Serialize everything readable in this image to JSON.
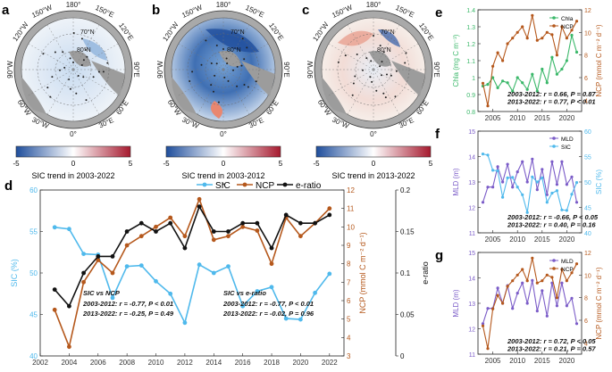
{
  "maps": [
    {
      "letter": "a",
      "caption": "SIC trend in 2003-2022",
      "extra": ""
    },
    {
      "letter": "b",
      "caption": "SIC trend in 2003-2012",
      "extra": "*"
    },
    {
      "letter": "c",
      "caption": "SIC trend in 2013-2022",
      "extra": ""
    }
  ],
  "map_labels": {
    "lon180": "180°",
    "lon150w": "150°W",
    "lon150e": "150°E",
    "lon120w": "120°W",
    "lon120e": "120°E",
    "lon90w": "90°W",
    "lon90e": "90°E",
    "lon60w": "60°W",
    "lon60e": "60°E",
    "lon30w": "30°W",
    "lon30e": "30°E",
    "lon0": "0°",
    "lat70": "70°N",
    "lat80": "80°N"
  },
  "colorbar": {
    "min": "-5",
    "mid": "0",
    "max": "5",
    "colors": [
      "#1f4e9c",
      "#ffffff",
      "#a6192e"
    ]
  },
  "chart_data": [
    {
      "id": "d",
      "type": "line",
      "title": "",
      "x": [
        2003,
        2004,
        2005,
        2006,
        2007,
        2008,
        2009,
        2010,
        2011,
        2012,
        2013,
        2014,
        2015,
        2016,
        2017,
        2018,
        2019,
        2020,
        2021,
        2022
      ],
      "xlim": [
        2002,
        2023
      ],
      "xticks": [
        "2002",
        "2004",
        "2006",
        "2008",
        "2010",
        "2012",
        "2014",
        "2016",
        "2018",
        "2020",
        "2022"
      ],
      "series": [
        {
          "name": "SIC",
          "axis": "left",
          "color": "#4fb9ec",
          "values": [
            55.5,
            55.3,
            52.3,
            52.2,
            47.0,
            50.8,
            50.9,
            49.0,
            47.5,
            44.0,
            51.0,
            50.0,
            50.8,
            46.0,
            47.8,
            48.3,
            44.5,
            44.4,
            47.6,
            49.9
          ]
        },
        {
          "name": "NCP",
          "axis": "right",
          "color": "#b5581c",
          "values": [
            5.5,
            3.5,
            7.0,
            8.2,
            7.5,
            9.0,
            9.5,
            10.0,
            10.5,
            9.5,
            11.5,
            9.3,
            9.5,
            10.0,
            9.8,
            8.0,
            10.5,
            9.5,
            10.2,
            11.0
          ]
        },
        {
          "name": "e-ratio",
          "axis": "right2",
          "color": "#111111",
          "values": [
            0.08,
            0.06,
            0.1,
            0.12,
            0.12,
            0.15,
            0.16,
            0.15,
            0.16,
            0.13,
            0.18,
            0.15,
            0.15,
            0.16,
            0.16,
            0.13,
            0.17,
            0.16,
            0.16,
            0.17
          ]
        }
      ],
      "ylabel_left": "SIC (%)",
      "ylim_left": [
        40,
        60
      ],
      "yticks_left": [
        "40",
        "45",
        "50",
        "55",
        "60"
      ],
      "ylabel_right": "NCP (mmol C m⁻² d⁻¹)",
      "ylim_right": [
        3,
        12
      ],
      "yticks_right": [
        "3",
        "4",
        "5",
        "6",
        "7",
        "8",
        "9",
        "10",
        "11",
        "12"
      ],
      "ylabel_right2": "e-ratio",
      "ylim_right2": [
        0,
        0.2
      ],
      "yticks_right2": [
        "0",
        "0.05",
        "0.1",
        "0.15",
        "0.2"
      ],
      "annotations": [
        {
          "title": "SIC vs NCP",
          "l1": "2003-2012: r = -0.77, P < 0.01",
          "l2": "2013-2022: r = -0.25, P = 0.49"
        },
        {
          "title": "SIC vs e-ratio",
          "l1": "2003-2012: r = -0.77, P < 0.01",
          "l2": "2013-2022: r = -0.02, P = 0.96"
        }
      ]
    },
    {
      "id": "e",
      "type": "line",
      "x": [
        2003,
        2004,
        2005,
        2006,
        2007,
        2008,
        2009,
        2010,
        2011,
        2012,
        2013,
        2014,
        2015,
        2016,
        2017,
        2018,
        2019,
        2020,
        2021,
        2022
      ],
      "xlim": [
        2002,
        2023
      ],
      "xticks": [
        "2005",
        "2010",
        "2015",
        "2020"
      ],
      "series": [
        {
          "name": "Chla",
          "axis": "left",
          "color": "#3bb86a",
          "values": [
            0.95,
            0.96,
            1.0,
            0.94,
            0.98,
            0.97,
            0.92,
            1.0,
            0.97,
            0.93,
            1.02,
            0.92,
            1.05,
            0.97,
            1.12,
            1.02,
            1.05,
            1.1,
            1.25,
            1.15
          ]
        },
        {
          "name": "NCP",
          "axis": "right",
          "color": "#b5581c",
          "values": [
            5.5,
            3.5,
            7.0,
            8.2,
            7.5,
            9.0,
            9.5,
            10.0,
            10.5,
            9.5,
            11.5,
            9.3,
            9.5,
            10.0,
            9.8,
            8.0,
            10.5,
            9.5,
            10.2,
            11.0
          ]
        }
      ],
      "ylabel_left": "Chla (mg C m⁻³)",
      "ylim_left": [
        0.8,
        1.4
      ],
      "yticks_left": [
        "0.8",
        "0.9",
        "1",
        "1.1",
        "1.2",
        "1.3",
        "1.4"
      ],
      "ylabel_right": "NCP (mmol C m⁻² d⁻¹)",
      "ylim_right": [
        3,
        12
      ],
      "yticks_right": [
        "4",
        "6",
        "8",
        "10",
        "12"
      ],
      "annotations": [
        {
          "l1": "2003-2012: r = 0.66, P = 0.87",
          "l2": "2013-2022: r = 0.77, P < 0.01"
        }
      ]
    },
    {
      "id": "f",
      "type": "line",
      "x": [
        2003,
        2004,
        2005,
        2006,
        2007,
        2008,
        2009,
        2010,
        2011,
        2012,
        2013,
        2014,
        2015,
        2016,
        2017,
        2018,
        2019,
        2020,
        2021,
        2022
      ],
      "xlim": [
        2002,
        2023
      ],
      "xticks": [
        "2005",
        "2010",
        "2015",
        "2020"
      ],
      "series": [
        {
          "name": "MLD",
          "axis": "left",
          "color": "#7b5cc8",
          "values": [
            12.2,
            12.8,
            12.8,
            13.6,
            13.0,
            13.7,
            12.8,
            13.4,
            13.8,
            13.0,
            13.9,
            12.7,
            13.5,
            12.5,
            13.8,
            12.9,
            13.8,
            12.9,
            13.2,
            12.2
          ]
        },
        {
          "name": "SIC",
          "axis": "right",
          "color": "#4fb9ec",
          "values": [
            55.5,
            55.3,
            52.3,
            52.2,
            47.0,
            50.8,
            50.9,
            49.0,
            47.5,
            44.0,
            51.0,
            50.0,
            50.8,
            46.0,
            47.8,
            48.3,
            44.5,
            44.4,
            47.6,
            49.9
          ]
        }
      ],
      "ylabel_left": "MLD (m)",
      "ylim_left": [
        11,
        15
      ],
      "yticks_left": [
        "11",
        "12",
        "13",
        "14",
        "15"
      ],
      "ylabel_right": "SIC (%)",
      "ylim_right": [
        40,
        60
      ],
      "yticks_right": [
        "40",
        "45",
        "50",
        "55",
        "60"
      ],
      "annotations": [
        {
          "l1": "2003-2012: r = -0.66, P < 0.05",
          "l2": "2013-2022: r = 0.40, P = 0.16"
        }
      ]
    },
    {
      "id": "g",
      "type": "line",
      "x": [
        2003,
        2004,
        2005,
        2006,
        2007,
        2008,
        2009,
        2010,
        2011,
        2012,
        2013,
        2014,
        2015,
        2016,
        2017,
        2018,
        2019,
        2020,
        2021,
        2022
      ],
      "xlim": [
        2002,
        2023
      ],
      "xticks": [
        "2005",
        "2010",
        "2015",
        "2020"
      ],
      "series": [
        {
          "name": "MLD",
          "axis": "left",
          "color": "#7b5cc8",
          "values": [
            12.2,
            12.8,
            12.8,
            13.6,
            13.0,
            13.7,
            12.8,
            13.4,
            13.8,
            13.0,
            13.9,
            12.7,
            13.5,
            12.5,
            13.8,
            12.9,
            13.8,
            12.9,
            13.2,
            12.2
          ]
        },
        {
          "name": "NCP",
          "axis": "right",
          "color": "#b5581c",
          "values": [
            5.5,
            3.5,
            7.0,
            8.2,
            7.5,
            9.0,
            9.5,
            10.0,
            10.5,
            9.5,
            11.5,
            9.3,
            9.5,
            10.0,
            9.8,
            8.0,
            10.5,
            9.5,
            10.2,
            11.0
          ]
        }
      ],
      "ylabel_left": "MLD (m)",
      "ylim_left": [
        11,
        15
      ],
      "yticks_left": [
        "11",
        "12",
        "13",
        "14",
        "15"
      ],
      "ylabel_right": "NCP (mmol C m⁻² d⁻¹)",
      "ylim_right": [
        3,
        12
      ],
      "yticks_right": [
        "4",
        "6",
        "8",
        "10",
        "12"
      ],
      "annotations": [
        {
          "l1": "2003-2012: r = 0.72, P < 0.05",
          "l2": "2013-2022: r = 0.21, P = 0.57"
        }
      ]
    }
  ]
}
